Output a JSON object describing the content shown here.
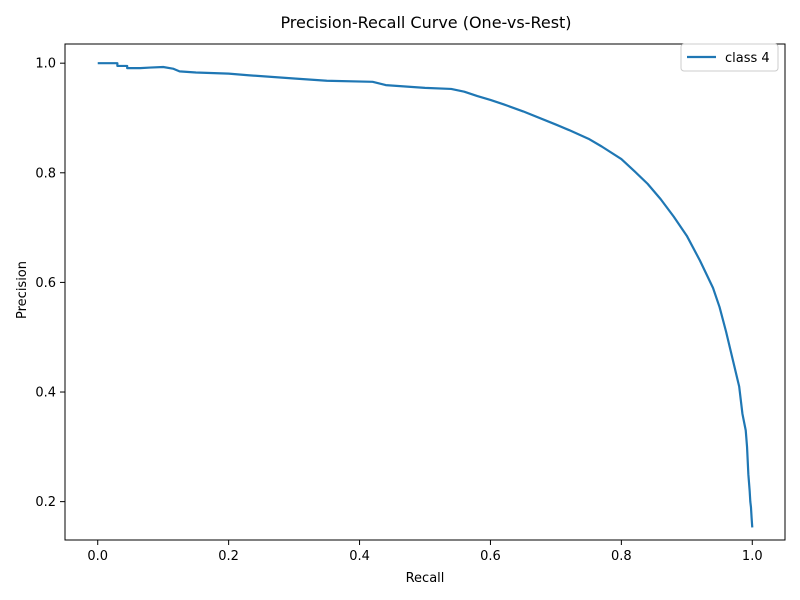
{
  "chart_data": {
    "type": "line",
    "title": "Precision-Recall Curve (One-vs-Rest)",
    "xlabel": "Recall",
    "ylabel": "Precision",
    "xlim": [
      -0.05,
      1.05
    ],
    "ylim": [
      0.13,
      1.035
    ],
    "xticks": [
      0.0,
      0.2,
      0.4,
      0.6,
      0.8,
      1.0
    ],
    "xtick_labels": [
      "0.0",
      "0.2",
      "0.4",
      "0.6",
      "0.8",
      "1.0"
    ],
    "yticks": [
      0.2,
      0.4,
      0.6,
      0.8,
      1.0
    ],
    "ytick_labels": [
      "0.2",
      "0.4",
      "0.6",
      "0.8",
      "1.0"
    ],
    "grid": false,
    "legend_position": "top-right",
    "series": [
      {
        "name": "class 4",
        "color": "#1f77b4",
        "x": [
          0.0,
          0.03,
          0.03,
          0.045,
          0.045,
          0.065,
          0.08,
          0.1,
          0.115,
          0.125,
          0.15,
          0.2,
          0.23,
          0.3,
          0.35,
          0.42,
          0.44,
          0.5,
          0.54,
          0.56,
          0.58,
          0.6,
          0.62,
          0.65,
          0.7,
          0.72,
          0.75,
          0.77,
          0.8,
          0.82,
          0.84,
          0.86,
          0.88,
          0.9,
          0.92,
          0.94,
          0.95,
          0.96,
          0.97,
          0.98,
          0.985,
          0.99,
          0.992,
          0.994,
          0.996,
          0.997,
          0.998,
          0.999,
          1.0
        ],
        "y": [
          1.0,
          1.0,
          0.995,
          0.995,
          0.991,
          0.991,
          0.992,
          0.993,
          0.99,
          0.985,
          0.983,
          0.981,
          0.978,
          0.972,
          0.968,
          0.966,
          0.96,
          0.955,
          0.953,
          0.948,
          0.94,
          0.933,
          0.925,
          0.912,
          0.888,
          0.878,
          0.862,
          0.848,
          0.825,
          0.803,
          0.78,
          0.752,
          0.72,
          0.685,
          0.64,
          0.59,
          0.555,
          0.51,
          0.46,
          0.41,
          0.36,
          0.33,
          0.3,
          0.25,
          0.22,
          0.2,
          0.19,
          0.17,
          0.153
        ]
      }
    ]
  }
}
